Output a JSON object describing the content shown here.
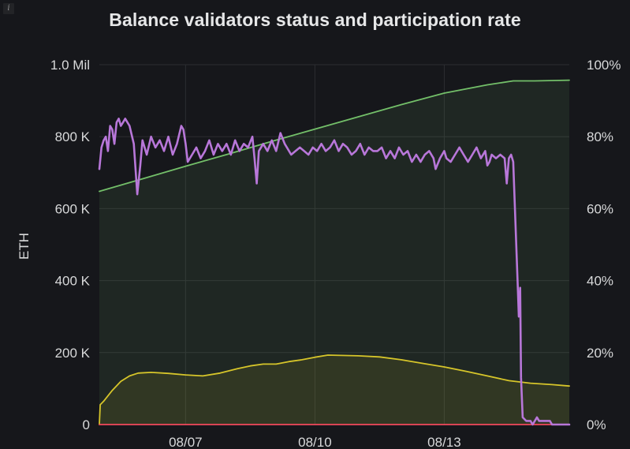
{
  "panel": {
    "title": "Balance validators status and participation rate",
    "info_icon_label": "i"
  },
  "chart_data": {
    "type": "line",
    "title": "Balance validators status and participation rate",
    "xlabel": "",
    "ylabel": "ETH",
    "y_left_ticks": [
      "0",
      "200 K",
      "400 K",
      "600 K",
      "800 K",
      "1.0 Mil"
    ],
    "y_left_range": [
      0,
      1000000
    ],
    "y_right_ticks": [
      "0%",
      "20%",
      "40%",
      "60%",
      "80%",
      "100%"
    ],
    "y_right_range": [
      0,
      100
    ],
    "x_ticks": [
      {
        "label": "08/07",
        "day": 7
      },
      {
        "label": "08/10",
        "day": 10
      },
      {
        "label": "08/13",
        "day": 13
      }
    ],
    "x_range_days": [
      5.0,
      15.9
    ],
    "grid": true,
    "series": [
      {
        "color": "#73bf69",
        "fill": "#73bf69",
        "axis": "left",
        "points": [
          [
            5.0,
            648000
          ],
          [
            6.0,
            683000
          ],
          [
            7.0,
            718000
          ],
          [
            8.0,
            752000
          ],
          [
            9.0,
            787000
          ],
          [
            10.0,
            821000
          ],
          [
            11.0,
            855000
          ],
          [
            12.0,
            889000
          ],
          [
            13.0,
            921000
          ],
          [
            14.0,
            944000
          ],
          [
            14.6,
            955000
          ],
          [
            15.1,
            955000
          ],
          [
            15.9,
            957000
          ]
        ]
      },
      {
        "color": "#d6c52a",
        "fill": "#d6c52a",
        "axis": "left",
        "points": [
          [
            5.0,
            0
          ],
          [
            5.02,
            55000
          ],
          [
            5.1,
            65000
          ],
          [
            5.3,
            95000
          ],
          [
            5.5,
            120000
          ],
          [
            5.7,
            135000
          ],
          [
            5.9,
            143000
          ],
          [
            6.2,
            145000
          ],
          [
            6.6,
            142000
          ],
          [
            7.0,
            138000
          ],
          [
            7.4,
            135000
          ],
          [
            7.8,
            143000
          ],
          [
            8.2,
            155000
          ],
          [
            8.5,
            163000
          ],
          [
            8.8,
            168000
          ],
          [
            9.1,
            168000
          ],
          [
            9.4,
            175000
          ],
          [
            9.7,
            180000
          ],
          [
            10.0,
            187000
          ],
          [
            10.3,
            193000
          ],
          [
            10.6,
            192000
          ],
          [
            11.0,
            191000
          ],
          [
            11.5,
            188000
          ],
          [
            12.0,
            180000
          ],
          [
            12.5,
            170000
          ],
          [
            13.0,
            160000
          ],
          [
            13.5,
            148000
          ],
          [
            14.0,
            135000
          ],
          [
            14.5,
            122000
          ],
          [
            15.0,
            115000
          ],
          [
            15.5,
            111000
          ],
          [
            15.9,
            107000
          ]
        ]
      },
      {
        "color": "#f2495c",
        "fill": "none",
        "axis": "left",
        "points": [
          [
            5.0,
            0
          ],
          [
            15.9,
            0
          ]
        ]
      },
      {
        "color": "#b877d9",
        "fill": "none",
        "axis": "right",
        "points": [
          [
            5.0,
            71
          ],
          [
            5.05,
            77
          ],
          [
            5.1,
            79
          ],
          [
            5.15,
            80
          ],
          [
            5.2,
            76
          ],
          [
            5.25,
            83
          ],
          [
            5.3,
            82
          ],
          [
            5.35,
            78
          ],
          [
            5.4,
            84
          ],
          [
            5.45,
            85
          ],
          [
            5.5,
            83
          ],
          [
            5.55,
            84
          ],
          [
            5.6,
            85
          ],
          [
            5.7,
            83
          ],
          [
            5.8,
            78
          ],
          [
            5.88,
            64
          ],
          [
            5.95,
            72
          ],
          [
            6.0,
            79
          ],
          [
            6.1,
            75
          ],
          [
            6.2,
            80
          ],
          [
            6.3,
            77
          ],
          [
            6.4,
            79
          ],
          [
            6.5,
            76
          ],
          [
            6.6,
            80
          ],
          [
            6.7,
            75
          ],
          [
            6.8,
            78
          ],
          [
            6.9,
            83
          ],
          [
            6.95,
            82
          ],
          [
            7.0,
            78
          ],
          [
            7.05,
            73
          ],
          [
            7.15,
            75
          ],
          [
            7.25,
            77
          ],
          [
            7.35,
            74
          ],
          [
            7.45,
            76
          ],
          [
            7.55,
            79
          ],
          [
            7.65,
            75
          ],
          [
            7.75,
            78
          ],
          [
            7.85,
            76
          ],
          [
            7.95,
            78
          ],
          [
            8.05,
            75
          ],
          [
            8.15,
            79
          ],
          [
            8.25,
            76
          ],
          [
            8.35,
            78
          ],
          [
            8.45,
            77
          ],
          [
            8.55,
            80
          ],
          [
            8.6,
            74
          ],
          [
            8.65,
            67
          ],
          [
            8.7,
            76
          ],
          [
            8.8,
            78
          ],
          [
            8.9,
            76
          ],
          [
            9.0,
            79
          ],
          [
            9.1,
            76
          ],
          [
            9.2,
            81
          ],
          [
            9.3,
            78
          ],
          [
            9.35,
            77
          ],
          [
            9.45,
            75
          ],
          [
            9.55,
            76
          ],
          [
            9.65,
            77
          ],
          [
            9.75,
            76
          ],
          [
            9.85,
            75
          ],
          [
            9.95,
            77
          ],
          [
            10.05,
            76
          ],
          [
            10.15,
            78
          ],
          [
            10.25,
            76
          ],
          [
            10.35,
            77
          ],
          [
            10.45,
            79
          ],
          [
            10.55,
            76
          ],
          [
            10.65,
            78
          ],
          [
            10.75,
            77
          ],
          [
            10.85,
            75
          ],
          [
            10.95,
            76
          ],
          [
            11.05,
            78
          ],
          [
            11.15,
            75
          ],
          [
            11.25,
            77
          ],
          [
            11.35,
            76
          ],
          [
            11.45,
            76
          ],
          [
            11.55,
            77
          ],
          [
            11.65,
            74
          ],
          [
            11.75,
            76
          ],
          [
            11.85,
            74
          ],
          [
            11.95,
            77
          ],
          [
            12.05,
            75
          ],
          [
            12.15,
            76
          ],
          [
            12.25,
            73
          ],
          [
            12.35,
            75
          ],
          [
            12.45,
            73
          ],
          [
            12.55,
            75
          ],
          [
            12.65,
            76
          ],
          [
            12.75,
            74
          ],
          [
            12.8,
            71
          ],
          [
            12.9,
            74
          ],
          [
            13.0,
            76
          ],
          [
            13.05,
            74
          ],
          [
            13.15,
            73
          ],
          [
            13.25,
            75
          ],
          [
            13.35,
            77
          ],
          [
            13.45,
            75
          ],
          [
            13.55,
            73
          ],
          [
            13.65,
            75
          ],
          [
            13.75,
            77
          ],
          [
            13.85,
            74
          ],
          [
            13.95,
            76
          ],
          [
            14.0,
            72
          ],
          [
            14.05,
            73
          ],
          [
            14.1,
            75
          ],
          [
            14.2,
            74
          ],
          [
            14.3,
            75
          ],
          [
            14.4,
            74
          ],
          [
            14.45,
            67
          ],
          [
            14.5,
            74
          ],
          [
            14.55,
            75
          ],
          [
            14.6,
            73
          ],
          [
            14.7,
            40
          ],
          [
            14.73,
            30
          ],
          [
            14.76,
            38
          ],
          [
            14.78,
            13
          ],
          [
            14.82,
            2
          ],
          [
            14.9,
            1
          ],
          [
            15.0,
            1
          ],
          [
            15.05,
            0
          ],
          [
            15.15,
            2
          ],
          [
            15.2,
            1
          ],
          [
            15.35,
            1
          ],
          [
            15.45,
            1
          ],
          [
            15.5,
            0
          ],
          [
            15.9,
            0
          ]
        ]
      }
    ]
  }
}
